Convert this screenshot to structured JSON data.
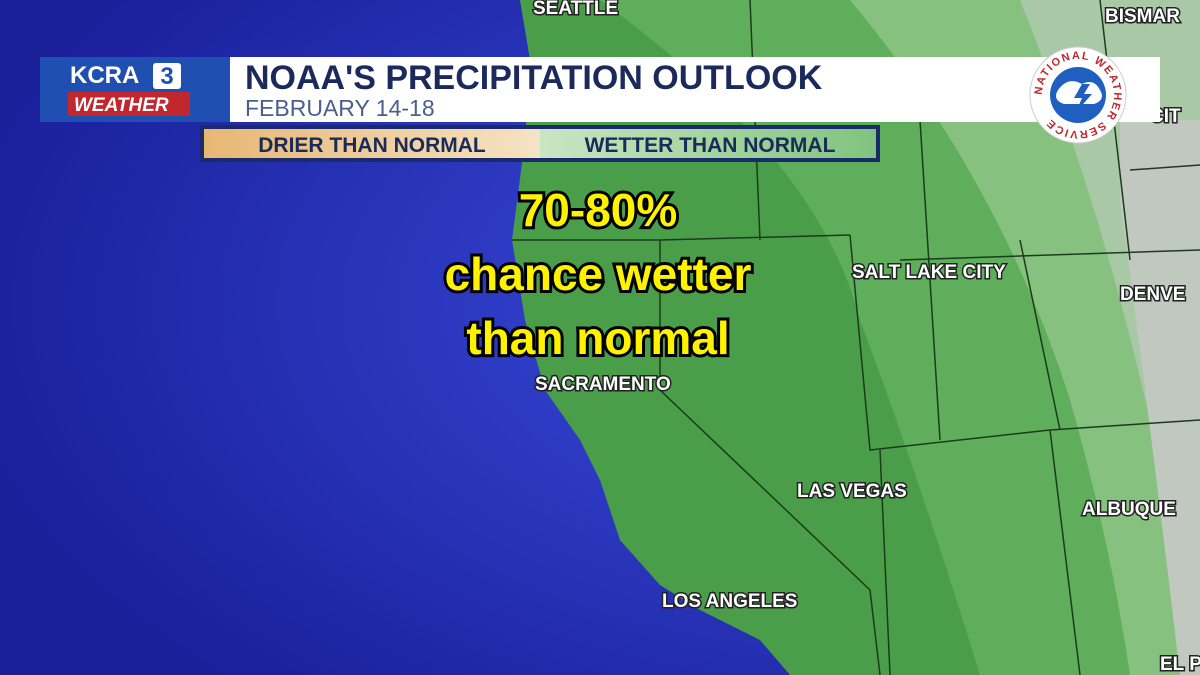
{
  "logo": {
    "station": "KCRA",
    "channel": "3",
    "brand": "WEATHER"
  },
  "header": {
    "title": "NOAA'S PRECIPITATION OUTLOOK",
    "date": "FEBRUARY 14-18"
  },
  "legend": {
    "items": [
      "DRIER THAN NORMAL",
      "WETTER THAN NORMAL"
    ]
  },
  "annotation": {
    "lines": [
      "70-80%",
      "chance wetter",
      "than normal"
    ]
  },
  "agency_seal": "NATIONAL WEATHER SERVICE",
  "cities": [
    "SEATTLE",
    "BISMAR",
    "CIT",
    "SALT LAKE CITY",
    "DENVE",
    "SACRAMENTO",
    "LAS VEGAS",
    "ALBUQUE",
    "LOS ANGELES",
    "EL P"
  ]
}
